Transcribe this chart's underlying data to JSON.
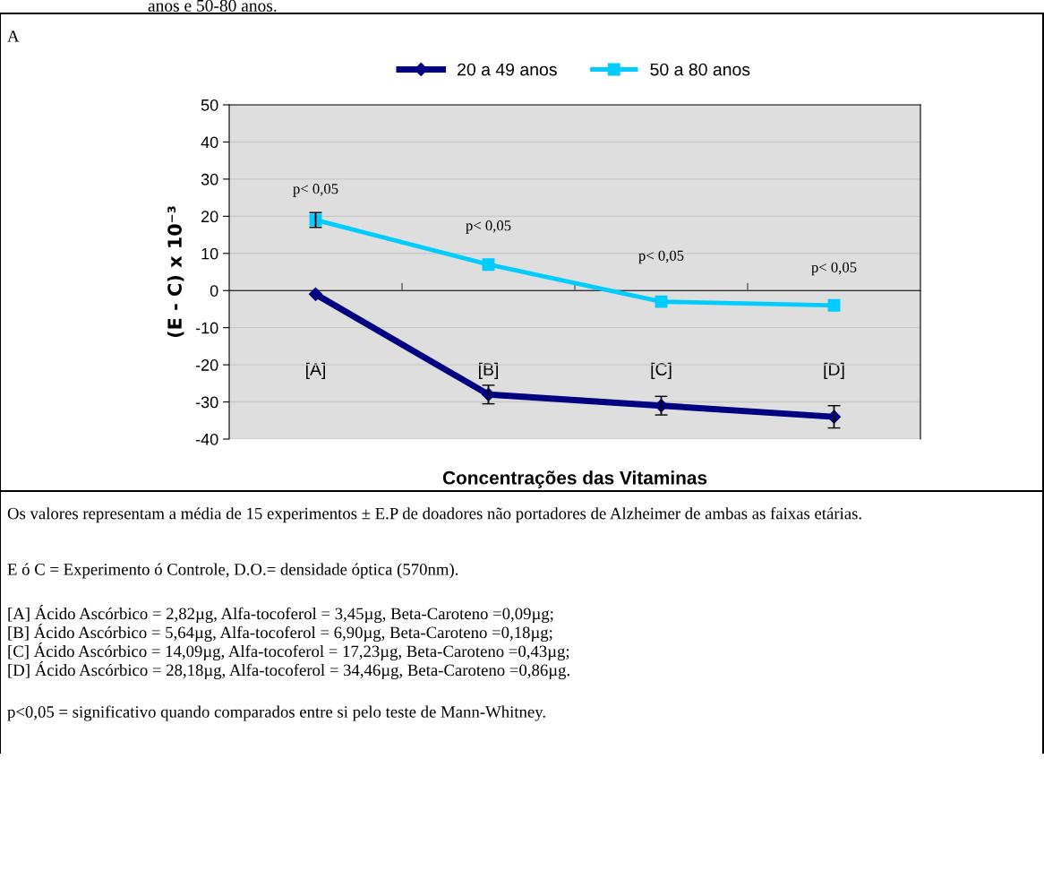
{
  "chart_data": {
    "type": "line",
    "xlabel": "Concentrações das Vitaminas",
    "ylabel": "(E - C) x 10⁻³",
    "categories": [
      "[A]",
      "[B]",
      "[C]",
      "[D]"
    ],
    "series": [
      {
        "name": "20 a 49 anos",
        "color": "#000080",
        "marker": "diamond",
        "values": [
          -1,
          -28,
          -31,
          -34
        ],
        "errors": [
          null,
          2.5,
          2.5,
          3
        ]
      },
      {
        "name": "50 a 80 anos",
        "color": "#00ccff",
        "marker": "square",
        "values": [
          19,
          7,
          -3,
          -4
        ],
        "errors": [
          2,
          null,
          null,
          null
        ]
      }
    ],
    "ylim": [
      -40,
      50
    ],
    "yticks": [
      -40,
      -30,
      -20,
      -10,
      0,
      10,
      20,
      30,
      40,
      50
    ],
    "grid": "y",
    "legend": "top",
    "line_style": "solid",
    "annotations": [
      "p< 0,05",
      "p< 0,05",
      "p< 0,05",
      "p< 0,05",
      "anos e 50-80 anos.",
      "A",
      "Os valores representam a média de 15 experimentos ± E.P de doadores não portadores de Alzheimer de ambas as faixas etárias.",
      "E ó C = Experimento ó Controle, D.O.= densidade óptica (570nm).",
      "[A] Ácido Ascórbico = 2,82µg, Alfa-tocoferol = 3,45µg, Beta-Caroteno =0,09µg;",
      "[B] Ácido Ascórbico = 5,64µg, Alfa-tocoferol = 6,90µg, Beta-Caroteno =0,18µg;",
      "[C] Ácido Ascórbico = 14,09µg, Alfa-tocoferol = 17,23µg, Beta-Caroteno =0,43µg;",
      "[D] Ácido Ascórbico = 28,18µg, Alfa-tocoferol = 34,46µg, Beta-Caroteno =0,86µg.",
      "p<0,05 = significativo quando comparados entre si pelo teste de Mann-Whitney."
    ]
  }
}
